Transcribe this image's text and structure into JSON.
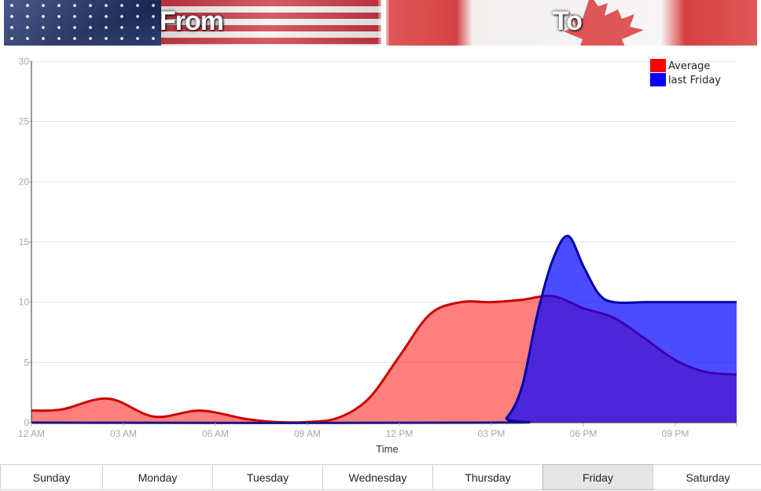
{
  "banner": {
    "from_label": "From",
    "to_label": "To",
    "from_flag": "us-flag-icon",
    "to_flag": "canada-flag-icon"
  },
  "chart_data": {
    "type": "area",
    "title": "",
    "xlabel": "Time",
    "ylabel": "",
    "ylim": [
      0,
      30
    ],
    "y_ticks": [
      0,
      5,
      10,
      15,
      20,
      25,
      30
    ],
    "xlim": [
      0,
      23
    ],
    "x_ticks": [
      0,
      3,
      6,
      9,
      12,
      15,
      18,
      21
    ],
    "x_tick_labels": [
      "12 AM",
      "03 AM",
      "06 AM",
      "09 AM",
      "12 PM",
      "03 PM",
      "06 PM",
      "09 PM"
    ],
    "grid": true,
    "legend_position": "top-right",
    "series": [
      {
        "name": "Average",
        "color": "#ff0000",
        "line_color": "#cc0000",
        "x": [
          0,
          1,
          2.5,
          4,
          5.5,
          7,
          8,
          9,
          10,
          11,
          12,
          13,
          14,
          15,
          16,
          17,
          18,
          19,
          20,
          21,
          22,
          23
        ],
        "values": [
          1,
          1.1,
          2,
          0.5,
          1,
          0.3,
          0.05,
          0.05,
          0.4,
          2,
          5.5,
          9,
          10,
          10,
          10.2,
          10.5,
          9.5,
          8.7,
          7,
          5.2,
          4.2,
          4
        ]
      },
      {
        "name": "last Friday",
        "color": "#0000ff",
        "line_color": "#0000aa",
        "x": [
          0,
          15,
          15.5,
          16,
          16.5,
          17,
          17.5,
          18,
          18.5,
          19,
          20,
          21,
          22,
          23
        ],
        "values": [
          0,
          0,
          0.4,
          3,
          9,
          13.5,
          15.5,
          13,
          10.7,
          10,
          10,
          10,
          10,
          10
        ]
      }
    ]
  },
  "day_tabs": [
    "Sunday",
    "Monday",
    "Tuesday",
    "Wednesday",
    "Thursday",
    "Friday",
    "Saturday"
  ],
  "active_day": "Friday"
}
